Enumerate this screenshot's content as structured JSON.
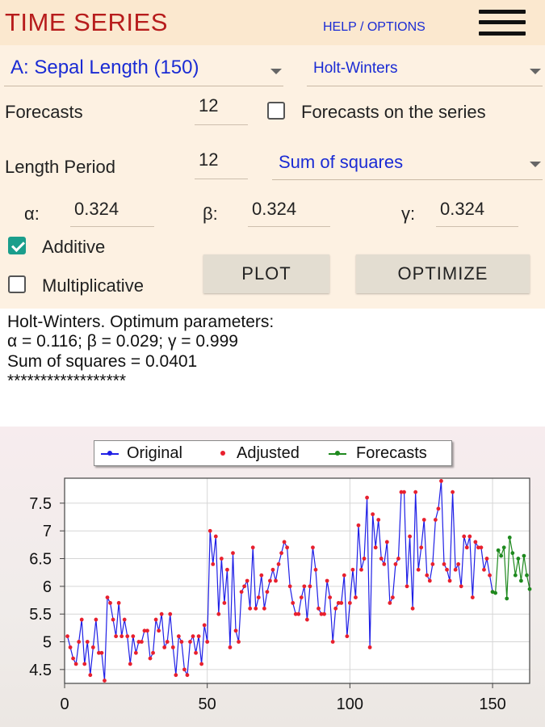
{
  "header": {
    "title": "TIME SERIES",
    "help_options": "HELP / OPTIONS",
    "menu_icon": "hamburger-menu-icon"
  },
  "controls": {
    "series_select": "A: Sepal Length  (150)",
    "method_select": "Holt-Winters",
    "forecasts_label": "Forecasts",
    "forecasts_value": "12",
    "forecasts_on_series_label": "Forecasts on the series",
    "forecasts_on_series_checked": false,
    "length_period_label": "Length Period",
    "length_period_value": "12",
    "criterion_select": "Sum of squares",
    "alpha_label": "α:",
    "alpha_value": "0.324",
    "beta_label": "β:",
    "beta_value": "0.324",
    "gamma_label": "γ:",
    "gamma_value": "0.324",
    "additive_label": "Additive",
    "additive_checked": true,
    "multiplicative_label": "Multiplicative",
    "multiplicative_checked": false,
    "plot_button": "PLOT",
    "optimize_button": "OPTIMIZE"
  },
  "output": {
    "lines": [
      "Holt-Winters. Optimum parameters:",
      "α = 0.116;  β = 0.029;  γ = 0.999",
      "Sum of squares = 0.0401",
      "******************"
    ]
  },
  "colors": {
    "title": "#b71c1c",
    "link": "#1a2bd4",
    "original": "#1f1fe6",
    "adjusted": "#e8202e",
    "forecasts": "#1f8a1f"
  },
  "chart_data": {
    "type": "line",
    "legend": [
      "Original",
      "Adjusted",
      "Forecasts"
    ],
    "legend_position": "top",
    "grid": true,
    "xlim": [
      0,
      163
    ],
    "ylim": [
      4.25,
      7.95
    ],
    "x_ticks": [
      0,
      50,
      100,
      150
    ],
    "y_ticks": [
      4.5,
      5,
      5.5,
      6,
      6.5,
      7,
      7.5
    ],
    "x_tick_labels": [
      "0",
      "50",
      "100",
      "150"
    ],
    "y_tick_labels": [
      "4.5",
      "5",
      "5.5",
      "6",
      "6.5",
      "7",
      "7.5"
    ],
    "series": [
      {
        "name": "Original",
        "x_start": 1,
        "values": [
          5.1,
          4.9,
          4.7,
          4.6,
          5.0,
          5.4,
          4.6,
          5.0,
          4.4,
          4.9,
          5.4,
          4.8,
          4.8,
          4.3,
          5.8,
          5.7,
          5.4,
          5.1,
          5.7,
          5.1,
          5.4,
          5.1,
          4.6,
          5.1,
          4.8,
          5.0,
          5.0,
          5.2,
          5.2,
          4.7,
          4.8,
          5.4,
          5.2,
          5.5,
          4.9,
          5.0,
          5.5,
          4.9,
          4.4,
          5.1,
          5.0,
          4.5,
          4.4,
          5.0,
          5.1,
          4.8,
          5.1,
          4.6,
          5.3,
          5.0,
          7.0,
          6.4,
          6.9,
          5.5,
          6.5,
          5.7,
          6.3,
          4.9,
          6.6,
          5.2,
          5.0,
          5.9,
          6.0,
          6.1,
          5.6,
          6.7,
          5.6,
          5.8,
          6.2,
          5.6,
          5.9,
          6.1,
          6.3,
          6.1,
          6.4,
          6.6,
          6.8,
          6.7,
          6.0,
          5.7,
          5.5,
          5.5,
          5.8,
          6.0,
          5.4,
          6.0,
          6.7,
          6.3,
          5.6,
          5.5,
          5.5,
          6.1,
          5.8,
          5.0,
          5.6,
          5.7,
          5.7,
          6.2,
          5.1,
          5.7,
          6.3,
          5.8,
          7.1,
          6.3,
          6.5,
          7.6,
          4.9,
          7.3,
          6.7,
          7.2,
          6.5,
          6.4,
          6.8,
          5.7,
          5.8,
          6.4,
          6.5,
          7.7,
          7.7,
          6.0,
          6.9,
          5.6,
          7.7,
          6.3,
          6.7,
          7.2,
          6.2,
          6.1,
          6.4,
          7.2,
          7.4,
          7.9,
          6.4,
          6.3,
          6.1,
          7.7,
          6.3,
          6.4,
          6.0,
          6.9,
          6.7,
          6.9,
          5.8,
          6.8,
          6.7,
          6.7,
          6.3,
          6.5,
          6.2,
          5.9
        ]
      },
      {
        "name": "Adjusted",
        "x_start": 1,
        "values": [
          5.1,
          4.9,
          4.7,
          4.6,
          5.0,
          5.4,
          4.6,
          5.0,
          4.4,
          4.9,
          5.4,
          4.8,
          4.8,
          4.3,
          5.8,
          5.7,
          5.4,
          5.1,
          5.7,
          5.1,
          5.4,
          5.1,
          4.6,
          5.1,
          4.8,
          5.0,
          5.0,
          5.2,
          5.2,
          4.7,
          4.8,
          5.4,
          5.2,
          5.5,
          4.9,
          5.0,
          5.5,
          4.9,
          4.4,
          5.1,
          5.0,
          4.5,
          4.4,
          5.0,
          5.1,
          4.8,
          5.1,
          4.6,
          5.3,
          5.0,
          7.0,
          6.4,
          6.9,
          5.5,
          6.5,
          5.7,
          6.3,
          4.9,
          6.6,
          5.2,
          5.0,
          5.9,
          6.0,
          6.1,
          5.6,
          6.7,
          5.6,
          5.8,
          6.2,
          5.6,
          5.9,
          6.1,
          6.3,
          6.1,
          6.4,
          6.6,
          6.8,
          6.7,
          6.0,
          5.7,
          5.5,
          5.5,
          5.8,
          6.0,
          5.4,
          6.0,
          6.7,
          6.3,
          5.6,
          5.5,
          5.5,
          6.1,
          5.8,
          5.0,
          5.6,
          5.7,
          5.7,
          6.2,
          5.1,
          5.7,
          6.3,
          5.8,
          7.1,
          6.3,
          6.5,
          7.6,
          4.9,
          7.3,
          6.7,
          7.2,
          6.5,
          6.4,
          6.8,
          5.7,
          5.8,
          6.4,
          6.5,
          7.7,
          7.7,
          6.0,
          6.9,
          5.6,
          7.7,
          6.3,
          6.7,
          7.2,
          6.2,
          6.1,
          6.4,
          7.2,
          7.4,
          7.9,
          6.4,
          6.3,
          6.1,
          7.7,
          6.3,
          6.4,
          6.0,
          6.9,
          6.7,
          6.9,
          5.8,
          6.8,
          6.7,
          6.7,
          6.3,
          6.5,
          6.2,
          5.9
        ]
      },
      {
        "name": "Forecasts",
        "x_start": 150,
        "values": [
          5.9,
          5.88,
          6.65,
          6.55,
          6.7,
          5.78,
          6.88,
          6.6,
          6.2,
          6.5,
          6.1,
          6.55,
          6.2,
          5.95
        ]
      }
    ]
  }
}
